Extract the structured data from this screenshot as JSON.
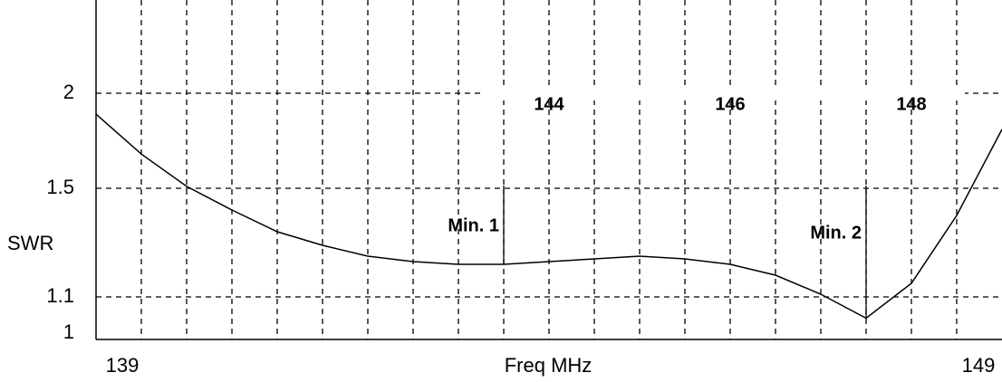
{
  "chart_data": {
    "type": "line",
    "x_label": "Freq MHz",
    "y_label": "SWR",
    "x": [
      139,
      139.5,
      140,
      140.5,
      141,
      141.5,
      142,
      142.5,
      143,
      143.5,
      144,
      144.5,
      145,
      145.5,
      146,
      146.5,
      147,
      147.5,
      148,
      148.5,
      149
    ],
    "series": [
      {
        "name": "SWR",
        "color": "#000000",
        "values": [
          1.89,
          1.68,
          1.51,
          1.42,
          1.34,
          1.29,
          1.25,
          1.23,
          1.22,
          1.22,
          1.23,
          1.24,
          1.25,
          1.24,
          1.22,
          1.18,
          1.11,
          1.05,
          1.15,
          1.4,
          1.81
        ]
      }
    ],
    "xlim": [
      139,
      149
    ],
    "xticks": [
      139,
      149
    ],
    "ylim": [
      1,
      2.5
    ],
    "yticks": [
      1,
      1.1,
      1.5,
      2
    ],
    "grid": true,
    "annotations": [
      {
        "text": "144",
        "x": 144
      },
      {
        "text": "146",
        "x": 146
      },
      {
        "text": "148",
        "x": 148
      }
    ],
    "markers": [
      {
        "text": "Min. 1",
        "x": 143.5,
        "y": 1.22
      },
      {
        "text": "Min. 2",
        "x": 147.5,
        "y": 1.05
      }
    ]
  }
}
